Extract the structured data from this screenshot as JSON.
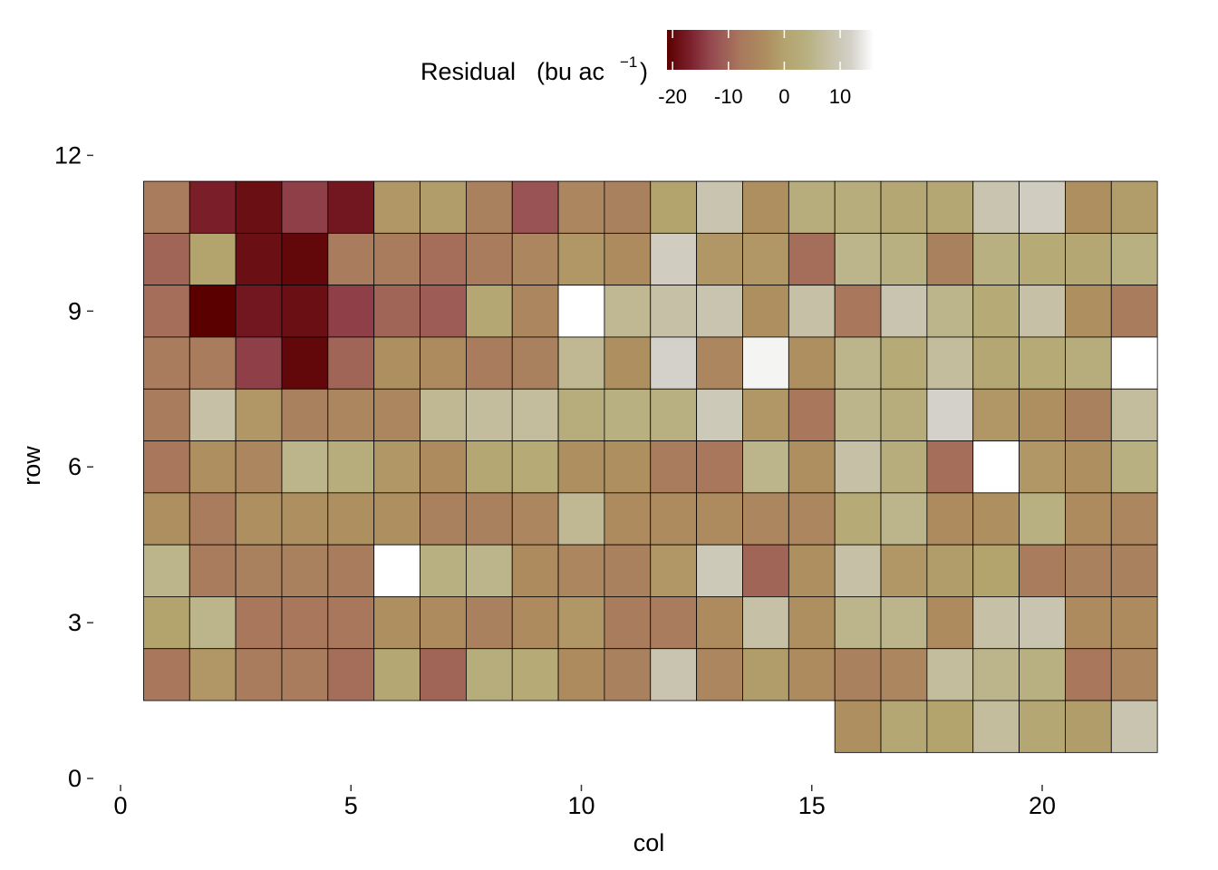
{
  "chart_data": {
    "type": "heatmap",
    "xlabel": "col",
    "ylabel": "row",
    "xlim": [
      0,
      22.5
    ],
    "ylim": [
      0,
      12
    ],
    "xticks": [
      0,
      5,
      10,
      15,
      20
    ],
    "yticks": [
      0,
      3,
      6,
      9,
      12
    ],
    "xtick_labels": [
      "0",
      "5",
      "10",
      "15",
      "20"
    ],
    "ytick_labels": [
      "0",
      "3",
      "6",
      "9",
      "12"
    ],
    "legend": {
      "title_main": "Residual",
      "title_unit_open": "(bu ac",
      "title_unit_exp": "−1",
      "title_unit_close": ")",
      "position": "top",
      "ticks": [
        -20,
        -10,
        0,
        10
      ],
      "tick_labels": [
        "-20",
        "-10",
        "0",
        "10"
      ],
      "range": [
        -21,
        16
      ]
    },
    "colorscale": [
      {
        "value": -21,
        "color": "#5a0000"
      },
      {
        "value": -17,
        "color": "#7a1f2a"
      },
      {
        "value": -13,
        "color": "#964a52"
      },
      {
        "value": -8,
        "color": "#a8775c"
      },
      {
        "value": -3,
        "color": "#ae9060"
      },
      {
        "value": 0,
        "color": "#b3a46e"
      },
      {
        "value": 4,
        "color": "#b8b080"
      },
      {
        "value": 8,
        "color": "#c6c0a6"
      },
      {
        "value": 12,
        "color": "#d3d1c9"
      },
      {
        "value": 16,
        "color": "#ffffff"
      }
    ],
    "cols": [
      1,
      2,
      3,
      4,
      5,
      6,
      7,
      8,
      9,
      10,
      11,
      12,
      13,
      14,
      15,
      16,
      17,
      18,
      19,
      20,
      21,
      22
    ],
    "rows": [
      11,
      10,
      9,
      8,
      7,
      6,
      5,
      4,
      3,
      2,
      1
    ],
    "values": [
      [
        -7,
        -17,
        -19,
        -14,
        -18,
        -2,
        -1,
        -6,
        -12,
        -5,
        -6,
        0,
        9,
        -3,
        3,
        3,
        1,
        1,
        9,
        11,
        -3,
        -1
      ],
      [
        -10,
        0,
        -19,
        -20,
        -7,
        -7,
        -9,
        -7,
        -5,
        -2,
        -4,
        11,
        -2,
        -2,
        -9,
        5,
        4,
        -6,
        4,
        2,
        1,
        4
      ],
      [
        -9,
        -21,
        -18,
        -19,
        -14,
        -10,
        -11,
        1,
        -5,
        16,
        6,
        8,
        9,
        -3,
        8,
        -8,
        9,
        5,
        2,
        8,
        -3,
        -7
      ],
      [
        -7,
        -7,
        -14,
        -20,
        -10,
        -3,
        -4,
        -7,
        -6,
        6,
        -3,
        12,
        -5,
        15,
        -3,
        5,
        2,
        7,
        1,
        2,
        3,
        16
      ],
      [
        -7,
        8,
        -2,
        -6,
        -5,
        -5,
        6,
        7,
        7,
        3,
        4,
        4,
        10,
        -2,
        -8,
        5,
        3,
        12,
        -2,
        -3,
        -6,
        7
      ],
      [
        -8,
        -3,
        -5,
        5,
        3,
        -2,
        -4,
        1,
        2,
        -3,
        -3,
        -7,
        -8,
        5,
        -3,
        8,
        3,
        -9,
        16,
        -2,
        -3,
        4
      ],
      [
        -3,
        -7,
        -3,
        -3,
        -3,
        -3,
        -6,
        -6,
        -5,
        6,
        -4,
        -4,
        -4,
        -5,
        -5,
        2,
        5,
        -4,
        -3,
        4,
        -4,
        -5
      ],
      [
        5,
        -7,
        -6,
        -6,
        -7,
        16,
        4,
        5,
        -4,
        -5,
        -6,
        -2,
        10,
        -10,
        -3,
        8,
        -2,
        -1,
        0,
        -7,
        -6,
        -6
      ],
      [
        0,
        5,
        -8,
        -8,
        -8,
        -3,
        -4,
        -6,
        -4,
        -2,
        -7,
        -7,
        -4,
        8,
        -3,
        5,
        5,
        -4,
        8,
        9,
        -4,
        -4
      ],
      [
        -8,
        -2,
        -7,
        -7,
        -9,
        1,
        -10,
        3,
        2,
        -4,
        -6,
        9,
        -5,
        -1,
        -4,
        -6,
        -5,
        7,
        5,
        4,
        -8,
        -5
      ],
      [
        null,
        null,
        null,
        null,
        null,
        null,
        null,
        null,
        null,
        null,
        null,
        null,
        null,
        null,
        null,
        -3,
        1,
        0,
        7,
        1,
        -1,
        9
      ]
    ]
  }
}
